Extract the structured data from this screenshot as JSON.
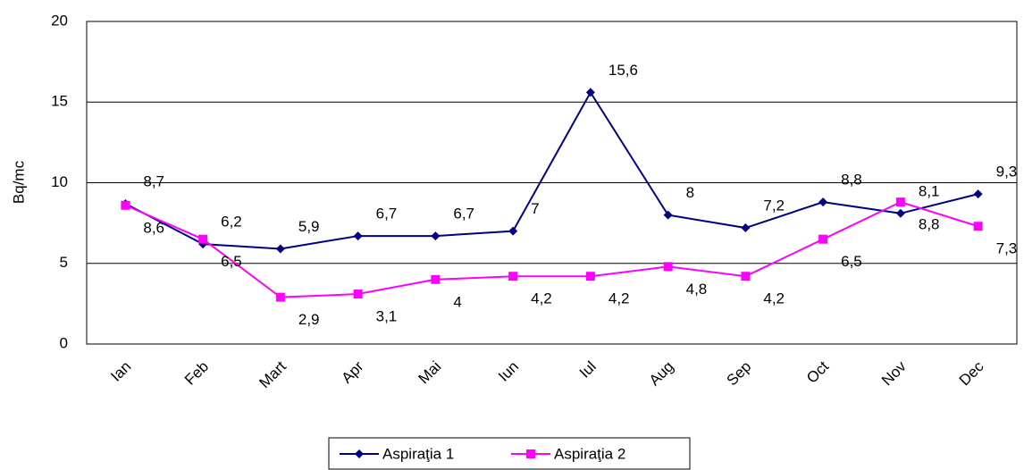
{
  "chart_data": {
    "type": "line",
    "y_label": "Bq/mc",
    "categories": [
      "Ian",
      "Feb",
      "Mart",
      "Apr",
      "Mai",
      "Iun",
      "Iul",
      "Aug",
      "Sep",
      "Oct",
      "Nov",
      "Dec"
    ],
    "series": [
      {
        "name": "Aspiraţia 1",
        "color": "#000080",
        "marker": "diamond",
        "values": [
          8.7,
          6.2,
          5.9,
          6.7,
          6.7,
          7,
          15.6,
          8,
          7.2,
          8.8,
          8.1,
          9.3
        ],
        "value_labels": [
          "8,7",
          "6,2",
          "5,9",
          "6,7",
          "6,7",
          "7",
          "15,6",
          "8",
          "7,2",
          "8,8",
          "8,1",
          "9,3"
        ]
      },
      {
        "name": "Aspiraţia 2",
        "color": "#ff00ff",
        "marker": "square",
        "values": [
          8.6,
          6.5,
          2.9,
          3.1,
          4,
          4.2,
          4.2,
          4.8,
          4.2,
          6.5,
          8.8,
          7.3
        ],
        "value_labels": [
          "8,6",
          "6,5",
          "2,9",
          "3,1",
          "4",
          "4,2",
          "4,2",
          "4,8",
          "4,2",
          "6,5",
          "8,8",
          "7,3"
        ]
      }
    ],
    "ylim": [
      0,
      20
    ],
    "yticks": [
      0,
      5,
      10,
      15,
      20
    ],
    "grid": true,
    "legend": "bottom"
  }
}
